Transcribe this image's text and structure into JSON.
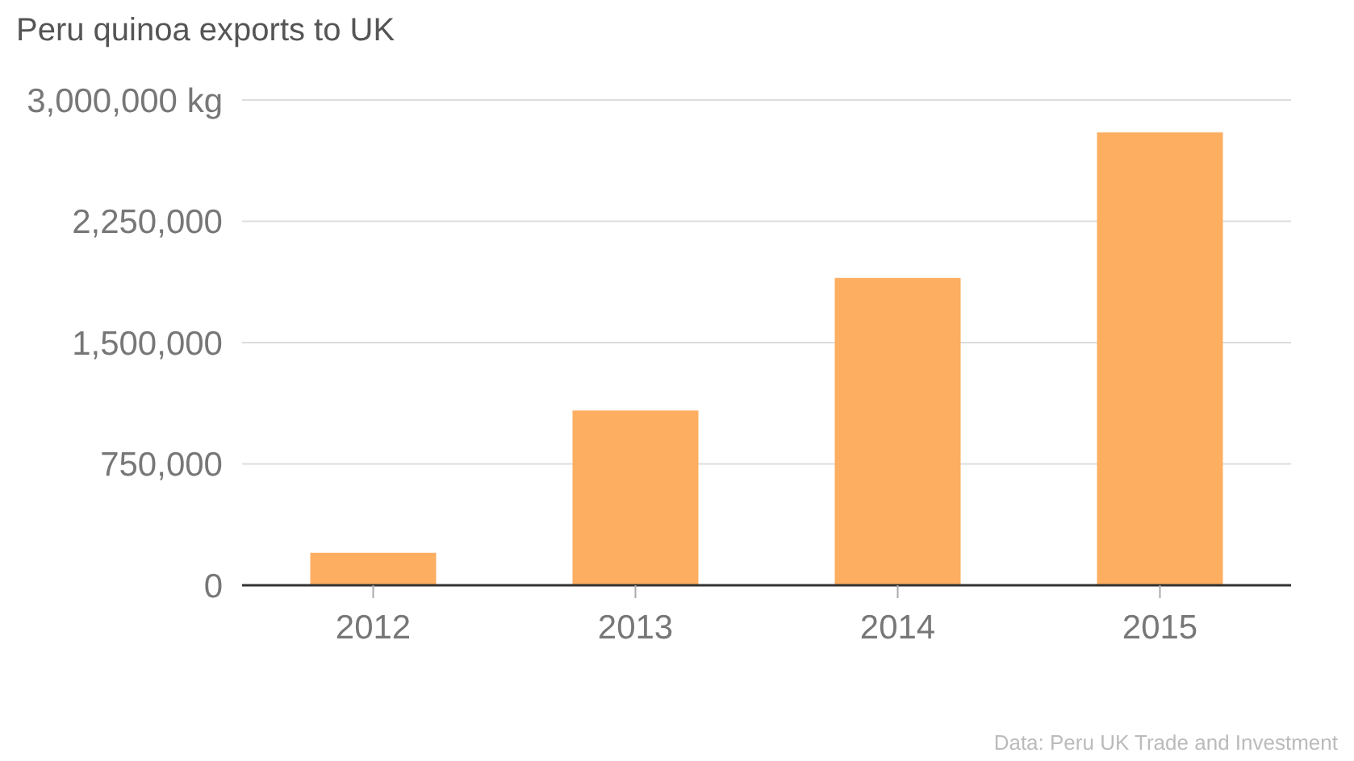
{
  "chart_data": {
    "type": "bar",
    "title": "Peru quinoa exports to UK",
    "categories": [
      "2012",
      "2013",
      "2014",
      "2015"
    ],
    "values": [
      200000,
      1080000,
      1900000,
      2800000
    ],
    "color": "#fdae61",
    "ylim": [
      0,
      3000000
    ],
    "yticks": [
      0,
      {
        "value": 750000,
        "label": "750,000"
      },
      {
        "value": 1500000,
        "label": "1,500,000"
      },
      {
        "value": 2250000,
        "label": "2,250,000"
      },
      {
        "value": 3000000,
        "label": "3,000,000 kg"
      }
    ],
    "grid": "y",
    "annotations": [
      "Data: Peru UK Trade and Investment"
    ]
  }
}
